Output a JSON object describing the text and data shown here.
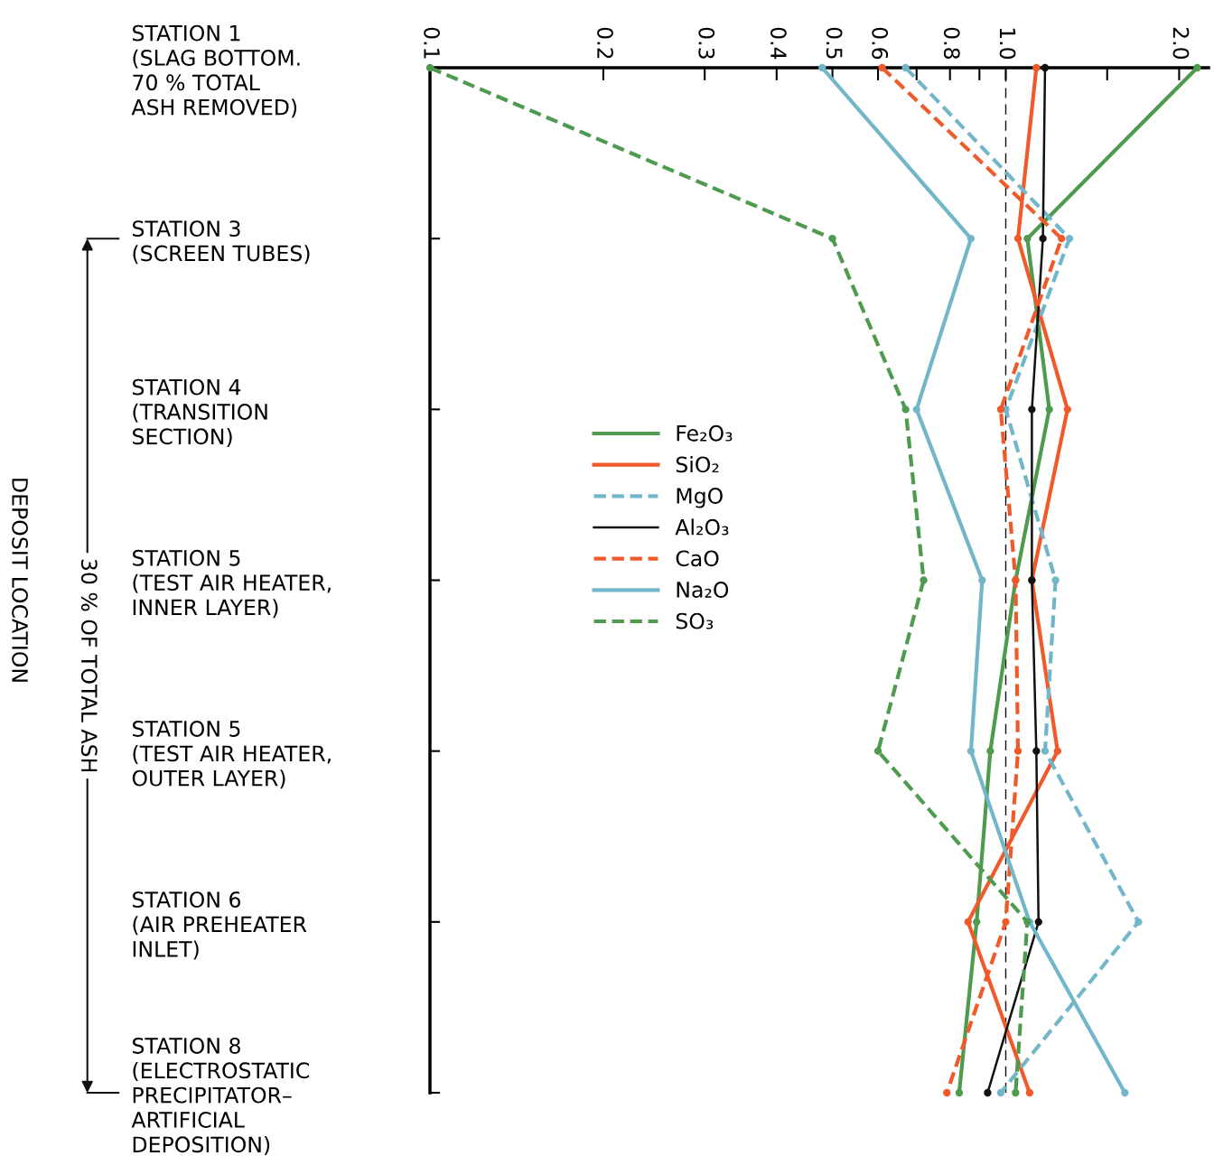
{
  "chart_data": {
    "type": "line",
    "orientation": "horizontal",
    "log": "x",
    "ylabel": "DEPOSIT LOCATION",
    "categories": [
      "STATION 1\n(SLAG BOTTOM.\n70 % TOTAL\nASH REMOVED)",
      "STATION 3\n(SCREEN TUBES)",
      "STATION 4\n(TRANSITION\nSECTION)",
      "STATION 5\n(TEST AIR HEATER,\nINNER LAYER)",
      "STATION 5\n(TEST AIR HEATER,\nOUTER LAYER)",
      "STATION 6\n(AIR PREHEATER\nINLET)",
      "STATION 8\n(ELECTROSTATIC\nPRECIPITATOR–\nARTIFICIAL\nDEPOSITION)"
    ],
    "xlim": [
      0.1,
      2.25
    ],
    "xticks": [
      0.1,
      0.2,
      0.3,
      0.4,
      0.5,
      0.6,
      {
        "value": 0.7,
        "label": null
      },
      0.8,
      {
        "value": 0.9,
        "label": null
      },
      {
        "value": 1.0,
        "label": "1.0"
      },
      {
        "value": 1.5,
        "label": null
      },
      {
        "value": 2.0,
        "label": "2.0"
      }
    ],
    "series": [
      {
        "name": "Fe₂O₃",
        "color": "#4e9a4e",
        "line_style": "solid",
        "values": [
          2.15,
          1.09,
          1.19,
          1.04,
          0.94,
          0.89,
          0.83
        ]
      },
      {
        "name": "SiO₂",
        "color": "#f05a2a",
        "line_style": "solid",
        "values": [
          1.13,
          1.05,
          1.28,
          1.11,
          1.23,
          0.86,
          1.1
        ]
      },
      {
        "name": "MgO",
        "color": "#72b6c9",
        "line_style": "dashed",
        "values": [
          0.67,
          1.29,
          1.0,
          1.22,
          1.17,
          1.7,
          0.98
        ]
      },
      {
        "name": "Al₂O₃",
        "color": "#111111",
        "line_style": "solid",
        "values": [
          1.17,
          1.16,
          1.11,
          1.11,
          1.13,
          1.14,
          0.93
        ]
      },
      {
        "name": "CaO",
        "color": "#f05a2a",
        "line_style": "dashed",
        "values": [
          0.61,
          1.25,
          0.98,
          1.04,
          1.05,
          1.0,
          0.79
        ]
      },
      {
        "name": "Na₂O",
        "color": "#72b6c9",
        "line_style": "solid",
        "values": [
          0.48,
          0.87,
          0.7,
          0.91,
          0.87,
          1.1,
          1.61
        ]
      },
      {
        "name": "SO₃",
        "color": "#4e9a4e",
        "line_style": "dashed",
        "values": [
          0.1,
          0.5,
          0.67,
          0.72,
          0.6,
          1.09,
          1.04
        ]
      }
    ],
    "marker": "circle",
    "legend": "center",
    "grid": false,
    "ref_lines": [
      {
        "axis": "x",
        "value": 1.0,
        "color": "#111111",
        "line_style": "dashed"
      }
    ],
    "annotations": [
      "30 % OF TOTAL ASH"
    ]
  }
}
